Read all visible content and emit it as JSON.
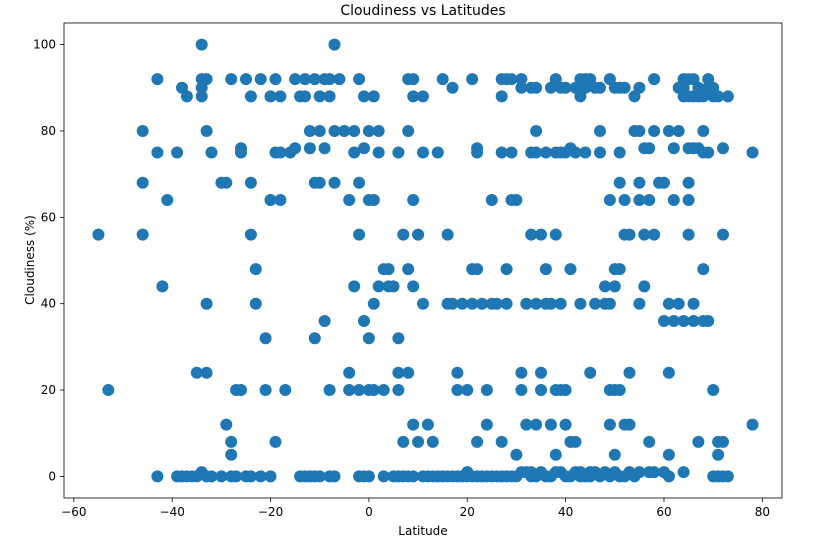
{
  "chart_data": {
    "type": "scatter",
    "title": "Cloudiness vs Latitudes",
    "xlabel": "Latitude",
    "ylabel": "Cloudiness (%)",
    "xlim": [
      -62,
      84
    ],
    "ylim": [
      -5,
      105
    ],
    "xticks": [
      -60,
      -40,
      -20,
      0,
      20,
      40,
      60,
      80
    ],
    "yticks": [
      0,
      20,
      40,
      60,
      80,
      100
    ],
    "grid": false,
    "marker_color": "#1f77b4",
    "points": [
      [
        -55,
        56
      ],
      [
        -53,
        20
      ],
      [
        -46,
        68
      ],
      [
        -46,
        56
      ],
      [
        -46,
        80
      ],
      [
        -43,
        92
      ],
      [
        -43,
        75
      ],
      [
        -42,
        44
      ],
      [
        -41,
        64
      ],
      [
        -39,
        75
      ],
      [
        -38,
        90
      ],
      [
        -37,
        88
      ],
      [
        -35,
        24
      ],
      [
        -34,
        100
      ],
      [
        -34,
        92
      ],
      [
        -34,
        90
      ],
      [
        -34,
        88
      ],
      [
        -33,
        92
      ],
      [
        -33,
        80
      ],
      [
        -33,
        40
      ],
      [
        -33,
        24
      ],
      [
        -32,
        75
      ],
      [
        -30,
        68
      ],
      [
        -29,
        68
      ],
      [
        -29,
        12
      ],
      [
        -28,
        92
      ],
      [
        -28,
        5
      ],
      [
        -28,
        8
      ],
      [
        -27,
        20
      ],
      [
        -26,
        20
      ],
      [
        -26,
        75
      ],
      [
        -26,
        76
      ],
      [
        -25,
        92
      ],
      [
        -24,
        56
      ],
      [
        -24,
        68
      ],
      [
        -24,
        88
      ],
      [
        -23,
        48
      ],
      [
        -23,
        40
      ],
      [
        -22,
        92
      ],
      [
        -21,
        32
      ],
      [
        -21,
        20
      ],
      [
        -20,
        88
      ],
      [
        -20,
        64
      ],
      [
        -19,
        75
      ],
      [
        -19,
        92
      ],
      [
        -19,
        8
      ],
      [
        -18,
        64
      ],
      [
        -18,
        75
      ],
      [
        -18,
        88
      ],
      [
        -17,
        20
      ],
      [
        -16,
        75
      ],
      [
        -15,
        92
      ],
      [
        -15,
        76
      ],
      [
        -14,
        88
      ],
      [
        -13,
        92
      ],
      [
        -13,
        88
      ],
      [
        -12,
        80
      ],
      [
        -12,
        76
      ],
      [
        -11,
        92
      ],
      [
        -11,
        68
      ],
      [
        -11,
        32
      ],
      [
        -10,
        68
      ],
      [
        -10,
        88
      ],
      [
        -10,
        80
      ],
      [
        -9,
        92
      ],
      [
        -9,
        76
      ],
      [
        -9,
        36
      ],
      [
        -8,
        92
      ],
      [
        -8,
        20
      ],
      [
        -8,
        88
      ],
      [
        -7,
        80
      ],
      [
        -7,
        68
      ],
      [
        -7,
        100
      ],
      [
        -6,
        92
      ],
      [
        -5,
        80
      ],
      [
        -4,
        64
      ],
      [
        -4,
        24
      ],
      [
        -4,
        20
      ],
      [
        -3,
        80
      ],
      [
        -3,
        75
      ],
      [
        -3,
        44
      ],
      [
        -2,
        92
      ],
      [
        -2,
        68
      ],
      [
        -2,
        56
      ],
      [
        -2,
        20
      ],
      [
        -1,
        76
      ],
      [
        -1,
        88
      ],
      [
        -1,
        36
      ],
      [
        0,
        80
      ],
      [
        0,
        64
      ],
      [
        0,
        32
      ],
      [
        0,
        20
      ],
      [
        1,
        88
      ],
      [
        1,
        64
      ],
      [
        1,
        40
      ],
      [
        1,
        20
      ],
      [
        2,
        80
      ],
      [
        2,
        75
      ],
      [
        2,
        44
      ],
      [
        3,
        48
      ],
      [
        3,
        20
      ],
      [
        4,
        48
      ],
      [
        4,
        44
      ],
      [
        5,
        44
      ],
      [
        6,
        75
      ],
      [
        6,
        24
      ],
      [
        6,
        20
      ],
      [
        6,
        32
      ],
      [
        7,
        56
      ],
      [
        7,
        8
      ],
      [
        8,
        92
      ],
      [
        8,
        80
      ],
      [
        8,
        48
      ],
      [
        8,
        24
      ],
      [
        9,
        92
      ],
      [
        9,
        88
      ],
      [
        9,
        64
      ],
      [
        9,
        44
      ],
      [
        9,
        12
      ],
      [
        10,
        56
      ],
      [
        10,
        8
      ],
      [
        11,
        88
      ],
      [
        11,
        75
      ],
      [
        11,
        40
      ],
      [
        12,
        12
      ],
      [
        13,
        8
      ],
      [
        14,
        75
      ],
      [
        15,
        92
      ],
      [
        16,
        40
      ],
      [
        16,
        56
      ],
      [
        17,
        90
      ],
      [
        17,
        40
      ],
      [
        18,
        24
      ],
      [
        18,
        20
      ],
      [
        19,
        40
      ],
      [
        20,
        20
      ],
      [
        20,
        1
      ],
      [
        21,
        92
      ],
      [
        21,
        48
      ],
      [
        21,
        40
      ],
      [
        22,
        76
      ],
      [
        22,
        75
      ],
      [
        22,
        48
      ],
      [
        22,
        8
      ],
      [
        23,
        40
      ],
      [
        24,
        20
      ],
      [
        24,
        12
      ],
      [
        25,
        64
      ],
      [
        25,
        40
      ],
      [
        26,
        40
      ],
      [
        27,
        88
      ],
      [
        27,
        92
      ],
      [
        27,
        75
      ],
      [
        27,
        8
      ],
      [
        28,
        92
      ],
      [
        28,
        48
      ],
      [
        28,
        40
      ],
      [
        29,
        64
      ],
      [
        29,
        92
      ],
      [
        29,
        75
      ],
      [
        30,
        64
      ],
      [
        30,
        5
      ],
      [
        31,
        92
      ],
      [
        31,
        90
      ],
      [
        31,
        24
      ],
      [
        31,
        20
      ],
      [
        32,
        40
      ],
      [
        32,
        12
      ],
      [
        33,
        75
      ],
      [
        33,
        56
      ],
      [
        33,
        90
      ],
      [
        33,
        1
      ],
      [
        34,
        90
      ],
      [
        34,
        80
      ],
      [
        34,
        75
      ],
      [
        34,
        40
      ],
      [
        34,
        12
      ],
      [
        35,
        56
      ],
      [
        35,
        24
      ],
      [
        35,
        20
      ],
      [
        36,
        75
      ],
      [
        36,
        48
      ],
      [
        36,
        40
      ],
      [
        37,
        90
      ],
      [
        37,
        40
      ],
      [
        37,
        12
      ],
      [
        38,
        92
      ],
      [
        38,
        75
      ],
      [
        38,
        56
      ],
      [
        38,
        20
      ],
      [
        38,
        5
      ],
      [
        39,
        90
      ],
      [
        39,
        75
      ],
      [
        39,
        40
      ],
      [
        39,
        20
      ],
      [
        40,
        90
      ],
      [
        40,
        75
      ],
      [
        40,
        20
      ],
      [
        40,
        12
      ],
      [
        41,
        76
      ],
      [
        41,
        48
      ],
      [
        41,
        8
      ],
      [
        42,
        90
      ],
      [
        42,
        75
      ],
      [
        42,
        8
      ],
      [
        43,
        92
      ],
      [
        43,
        90
      ],
      [
        43,
        88
      ],
      [
        43,
        40
      ],
      [
        43,
        1
      ],
      [
        44,
        92
      ],
      [
        44,
        90
      ],
      [
        44,
        75
      ],
      [
        45,
        92
      ],
      [
        45,
        24
      ],
      [
        45,
        1
      ],
      [
        46,
        90
      ],
      [
        46,
        40
      ],
      [
        47,
        90
      ],
      [
        47,
        80
      ],
      [
        47,
        75
      ],
      [
        48,
        40
      ],
      [
        48,
        44
      ],
      [
        49,
        92
      ],
      [
        49,
        64
      ],
      [
        49,
        40
      ],
      [
        49,
        20
      ],
      [
        49,
        12
      ],
      [
        50,
        90
      ],
      [
        50,
        48
      ],
      [
        50,
        44
      ],
      [
        50,
        20
      ],
      [
        50,
        5
      ],
      [
        51,
        90
      ],
      [
        51,
        75
      ],
      [
        51,
        68
      ],
      [
        51,
        48
      ],
      [
        51,
        20
      ],
      [
        52,
        90
      ],
      [
        52,
        64
      ],
      [
        52,
        56
      ],
      [
        52,
        12
      ],
      [
        53,
        56
      ],
      [
        53,
        24
      ],
      [
        53,
        12
      ],
      [
        54,
        88
      ],
      [
        54,
        80
      ],
      [
        55,
        90
      ],
      [
        55,
        80
      ],
      [
        55,
        68
      ],
      [
        55,
        64
      ],
      [
        55,
        40
      ],
      [
        56,
        76
      ],
      [
        56,
        56
      ],
      [
        56,
        44
      ],
      [
        57,
        76
      ],
      [
        57,
        64
      ],
      [
        57,
        8
      ],
      [
        58,
        92
      ],
      [
        58,
        80
      ],
      [
        58,
        56
      ],
      [
        59,
        68
      ],
      [
        60,
        68
      ],
      [
        60,
        36
      ],
      [
        61,
        80
      ],
      [
        61,
        40
      ],
      [
        61,
        24
      ],
      [
        61,
        5
      ],
      [
        62,
        76
      ],
      [
        62,
        64
      ],
      [
        62,
        36
      ],
      [
        63,
        90
      ],
      [
        63,
        80
      ],
      [
        63,
        40
      ],
      [
        64,
        92
      ],
      [
        64,
        90
      ],
      [
        64,
        88
      ],
      [
        64,
        36
      ],
      [
        65,
        92
      ],
      [
        65,
        88
      ],
      [
        65,
        76
      ],
      [
        65,
        68
      ],
      [
        65,
        64
      ],
      [
        65,
        56
      ],
      [
        66,
        92
      ],
      [
        66,
        88
      ],
      [
        66,
        76
      ],
      [
        66,
        40
      ],
      [
        66,
        36
      ],
      [
        67,
        90
      ],
      [
        67,
        88
      ],
      [
        67,
        76
      ],
      [
        67,
        8
      ],
      [
        68,
        88
      ],
      [
        68,
        80
      ],
      [
        68,
        75
      ],
      [
        68,
        48
      ],
      [
        68,
        36
      ],
      [
        69,
        92
      ],
      [
        69,
        90
      ],
      [
        69,
        75
      ],
      [
        69,
        36
      ],
      [
        70,
        90
      ],
      [
        70,
        88
      ],
      [
        70,
        20
      ],
      [
        71,
        88
      ],
      [
        71,
        5
      ],
      [
        71,
        8
      ],
      [
        72,
        76
      ],
      [
        72,
        56
      ],
      [
        72,
        8
      ],
      [
        73,
        88
      ],
      [
        78,
        12
      ],
      [
        78,
        75
      ],
      [
        -43,
        0
      ],
      [
        -39,
        0
      ],
      [
        -38,
        0
      ],
      [
        -37,
        0
      ],
      [
        -36,
        0
      ],
      [
        -35,
        0
      ],
      [
        -34,
        1
      ],
      [
        -33,
        0
      ],
      [
        -32,
        0
      ],
      [
        -30,
        0
      ],
      [
        -28,
        0
      ],
      [
        -27,
        0
      ],
      [
        -25,
        0
      ],
      [
        -24,
        0
      ],
      [
        -22,
        0
      ],
      [
        -20,
        0
      ],
      [
        -14,
        0
      ],
      [
        -13,
        0
      ],
      [
        -12,
        0
      ],
      [
        -11,
        0
      ],
      [
        -10,
        0
      ],
      [
        -8,
        0
      ],
      [
        -7,
        0
      ],
      [
        -2,
        0
      ],
      [
        -1,
        0
      ],
      [
        0,
        0
      ],
      [
        3,
        0
      ],
      [
        5,
        0
      ],
      [
        6,
        0
      ],
      [
        7,
        0
      ],
      [
        8,
        0
      ],
      [
        9,
        0
      ],
      [
        11,
        0
      ],
      [
        12,
        0
      ],
      [
        13,
        0
      ],
      [
        14,
        0
      ],
      [
        15,
        0
      ],
      [
        16,
        0
      ],
      [
        17,
        0
      ],
      [
        18,
        0
      ],
      [
        19,
        0
      ],
      [
        20,
        0
      ],
      [
        21,
        0
      ],
      [
        22,
        0
      ],
      [
        23,
        0
      ],
      [
        24,
        0
      ],
      [
        25,
        0
      ],
      [
        26,
        0
      ],
      [
        27,
        0
      ],
      [
        28,
        0
      ],
      [
        29,
        0
      ],
      [
        30,
        0
      ],
      [
        31,
        1
      ],
      [
        32,
        1
      ],
      [
        33,
        0
      ],
      [
        34,
        0
      ],
      [
        35,
        1
      ],
      [
        36,
        0
      ],
      [
        37,
        0
      ],
      [
        38,
        1
      ],
      [
        39,
        1
      ],
      [
        40,
        0
      ],
      [
        41,
        0
      ],
      [
        42,
        1
      ],
      [
        43,
        0
      ],
      [
        44,
        0
      ],
      [
        45,
        0
      ],
      [
        46,
        1
      ],
      [
        47,
        0
      ],
      [
        48,
        1
      ],
      [
        49,
        0
      ],
      [
        50,
        1
      ],
      [
        51,
        0
      ],
      [
        52,
        0
      ],
      [
        53,
        1
      ],
      [
        54,
        0
      ],
      [
        55,
        1
      ],
      [
        57,
        1
      ],
      [
        58,
        1
      ],
      [
        60,
        1
      ],
      [
        61,
        0
      ],
      [
        64,
        1
      ],
      [
        70,
        0
      ],
      [
        71,
        0
      ],
      [
        72,
        0
      ],
      [
        73,
        0
      ]
    ]
  }
}
